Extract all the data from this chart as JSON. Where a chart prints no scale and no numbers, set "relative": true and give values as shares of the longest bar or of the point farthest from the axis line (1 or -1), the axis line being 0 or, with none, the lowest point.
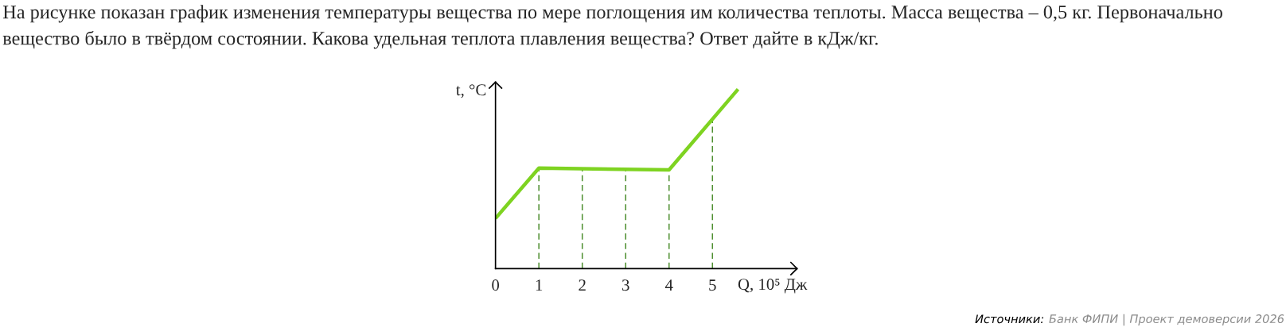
{
  "chart_data": {
    "type": "line",
    "title": "На рисунке показан график изменения температуры вещества по мере поглощения им количества теплоты. Масса вещества – 0,5 кг. Первоначально\nвещество было в твёрдом состоянии. Какова удельная теплота плавления вещества? Ответ дайте в кДж/кг.",
    "xlabel": "Q, 10⁵ Дж",
    "ylabel": "t, °C",
    "annotations": [
      "Источники:",
      "Банк ФИПИ | Проект демоверсии 2026"
    ],
    "relative": true,
    "tick_labels": "x",
    "xlim": [
      0,
      6.95
    ],
    "xticks": [
      0,
      1,
      2,
      3,
      4,
      5
    ],
    "series": [
      {
        "color": "#7ed321",
        "x": [
          0,
          1,
          4,
          5.59
        ],
        "values": [
          0.28,
          0.56,
          0.55,
          1
        ]
      }
    ],
    "ref_lines": [
      {
        "axis": "x",
        "value": 1,
        "color": "#4e8f30",
        "line_style": "dashed"
      },
      {
        "axis": "x",
        "value": 2,
        "color": "#4e8f30",
        "line_style": "dashed"
      },
      {
        "axis": "x",
        "value": 3,
        "color": "#4e8f30",
        "line_style": "dashed"
      },
      {
        "axis": "x",
        "value": 4,
        "color": "#4e8f30",
        "line_style": "dashed"
      },
      {
        "axis": "x",
        "value": 5,
        "color": "#4e8f30",
        "line_style": "dashed"
      }
    ],
    "grid": false,
    "legend": false,
    "marker": "none",
    "line_style": "solid"
  }
}
